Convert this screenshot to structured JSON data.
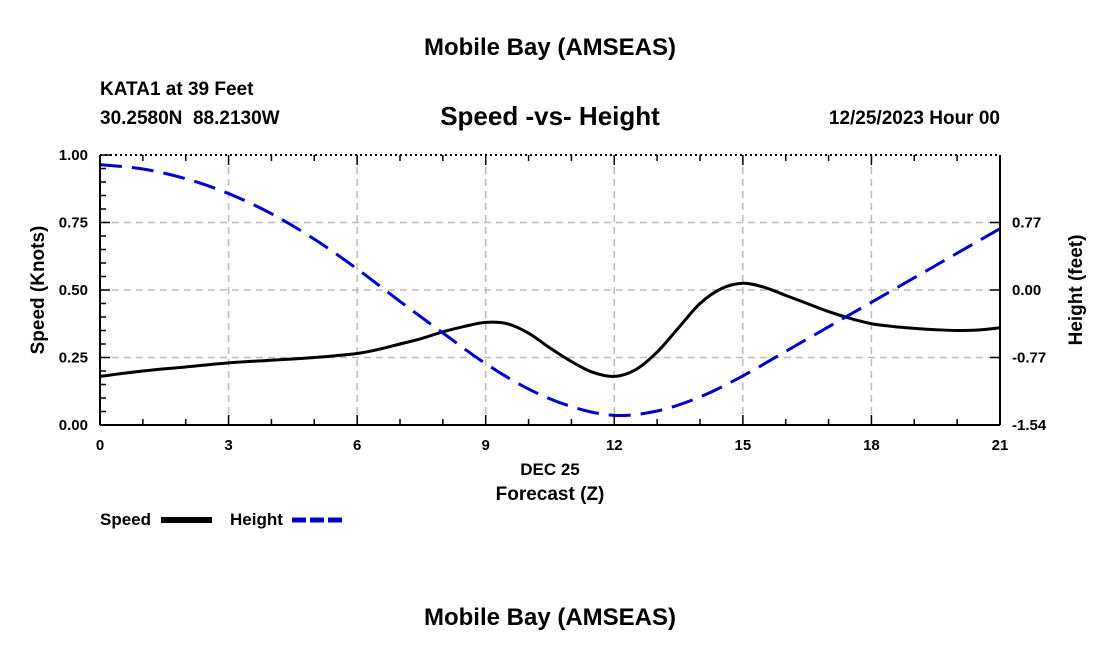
{
  "page": {
    "top_title": "Mobile Bay (AMSEAS)",
    "bottom_title": "Mobile Bay (AMSEAS)"
  },
  "chart_data": {
    "type": "line",
    "title": "Speed -vs- Height",
    "station": "KATA1 at 39 Feet",
    "location": "30.2580N  88.2130W",
    "date_label": "12/25/2023 Hour 00",
    "xlabel": "Forecast (Z)",
    "x_date_label": "DEC 25",
    "ylabel": "Speed (Knots)",
    "y2label": "Height (feet)",
    "xlim": [
      0,
      21
    ],
    "ylim": [
      0,
      1
    ],
    "y2lim": [
      -1.54,
      1.54
    ],
    "xticks": [
      0,
      3,
      6,
      9,
      12,
      15,
      18,
      21
    ],
    "xtick_labels": [
      "0",
      "3",
      "6",
      "9",
      "12",
      "15",
      "18",
      "21"
    ],
    "yticks": [
      0,
      0.25,
      0.5,
      0.75,
      1
    ],
    "ytick_labels": [
      "0.00",
      "0.25",
      "0.50",
      "0.75",
      "1.00"
    ],
    "y2ticks": [
      -1.54,
      -0.77,
      0,
      0.77
    ],
    "y2tick_labels": [
      "-1.54",
      "-0.77",
      "0.00",
      "0.77"
    ],
    "grid": true,
    "series": [
      {
        "name": "Speed",
        "axis": "left",
        "color": "#000000",
        "dash": "solid",
        "x": [
          0,
          1,
          2,
          3,
          4,
          5,
          6,
          6.5,
          7,
          7.5,
          8,
          8.5,
          9,
          9.5,
          10,
          10.5,
          11,
          11.5,
          12,
          12.5,
          13,
          13.5,
          14,
          14.5,
          15,
          15.5,
          16,
          16.5,
          17,
          17.5,
          18,
          18.5,
          19,
          19.5,
          20,
          20.5,
          21
        ],
        "values": [
          0.18,
          0.2,
          0.215,
          0.23,
          0.24,
          0.25,
          0.265,
          0.28,
          0.3,
          0.32,
          0.345,
          0.365,
          0.38,
          0.375,
          0.34,
          0.285,
          0.235,
          0.195,
          0.18,
          0.205,
          0.27,
          0.36,
          0.45,
          0.505,
          0.525,
          0.51,
          0.48,
          0.45,
          0.42,
          0.395,
          0.375,
          0.365,
          0.358,
          0.353,
          0.35,
          0.352,
          0.36
        ]
      },
      {
        "name": "Height",
        "axis": "right",
        "color": "#0000cc",
        "dash": "dashed",
        "x": [
          0,
          1,
          2,
          3,
          4,
          5,
          6,
          7,
          8,
          9,
          10,
          11,
          12,
          13,
          14,
          15,
          16,
          17,
          18,
          19,
          20,
          21
        ],
        "values": [
          1.43,
          1.38,
          1.27,
          1.1,
          0.87,
          0.58,
          0.24,
          -0.13,
          -0.49,
          -0.84,
          -1.13,
          -1.33,
          -1.43,
          -1.38,
          -1.22,
          -0.98,
          -0.7,
          -0.42,
          -0.14,
          0.14,
          0.42,
          0.7
        ]
      }
    ],
    "legend": [
      {
        "label": "Speed",
        "color": "#000000",
        "dash": "solid"
      },
      {
        "label": "Height",
        "color": "#0000cc",
        "dash": "dashed"
      }
    ],
    "legend_position": "bottom-left"
  }
}
